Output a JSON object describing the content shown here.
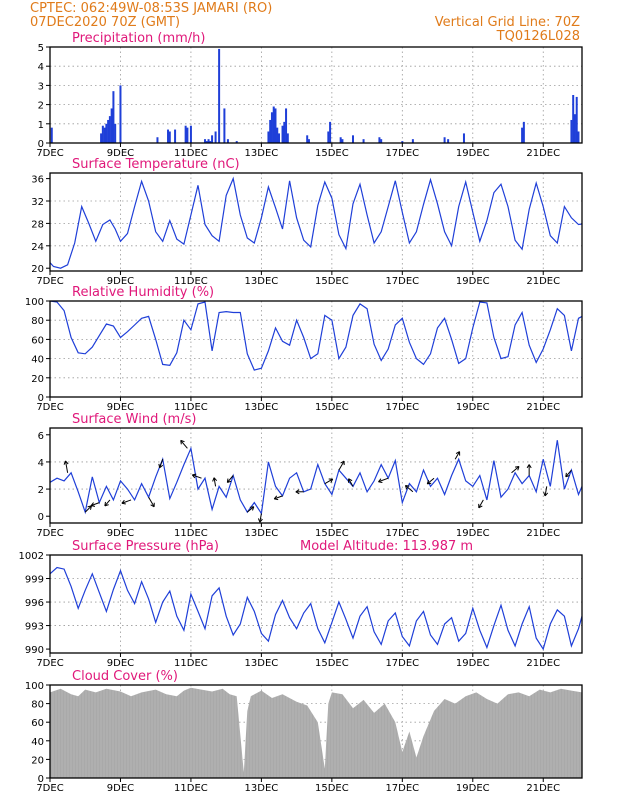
{
  "header": {
    "line1": "CPTEC:    062:49W-08:53S   JAMARI (RO)",
    "line2": "07DEC2020 70Z (GMT)",
    "grid_note": "Vertical Grid Line: 70Z",
    "code": "TQ0126L028"
  },
  "colors": {
    "header": "#e07b1a",
    "panel_title": "#e0187a",
    "series": "#1f3fd8",
    "cloud": "#a9a9a9"
  },
  "x_axis": {
    "ticks": [
      "7DEC",
      "9DEC",
      "11DEC",
      "13DEC",
      "15DEC",
      "17DEC",
      "19DEC",
      "21DEC"
    ],
    "tick_days": [
      7,
      9,
      11,
      13,
      15,
      17,
      19,
      21
    ],
    "range_days": [
      7,
      22.1
    ]
  },
  "chart_data": [
    {
      "id": "precip",
      "type": "bar",
      "title": "Precipitation (mm/h)",
      "ylim": [
        0,
        5
      ],
      "yticks": [
        "0",
        "1",
        "2",
        "3",
        "4",
        "5"
      ],
      "ytick_values": [
        0,
        1,
        2,
        3,
        4,
        5
      ],
      "x": [
        7.05,
        8.45,
        8.5,
        8.55,
        8.6,
        8.65,
        8.7,
        8.75,
        8.8,
        9.0,
        8.85,
        10.05,
        10.35,
        10.4,
        10.55,
        10.85,
        10.9,
        11.0,
        11.4,
        11.45,
        11.5,
        11.55,
        11.6,
        11.7,
        11.8,
        11.95,
        12.05,
        12.3,
        13.2,
        13.25,
        13.3,
        13.35,
        13.4,
        13.45,
        13.5,
        13.6,
        13.65,
        13.7,
        13.75,
        14.3,
        14.35,
        14.9,
        14.95,
        15.25,
        15.3,
        15.6,
        15.9,
        16.35,
        16.4,
        17.0,
        17.3,
        18.2,
        18.3,
        18.75,
        20.4,
        20.45,
        21.8,
        21.85,
        21.9,
        21.95,
        22.0
      ],
      "y": [
        0.8,
        0.5,
        0.9,
        0.8,
        1.0,
        1.2,
        1.4,
        1.8,
        2.7,
        3.0,
        1.0,
        0.3,
        0.7,
        0.6,
        0.7,
        0.9,
        0.8,
        0.9,
        0.2,
        0.1,
        0.2,
        0.1,
        0.4,
        0.6,
        4.9,
        1.8,
        0.2,
        0.1,
        0.6,
        1.2,
        1.6,
        1.9,
        1.8,
        0.8,
        0.5,
        0.9,
        1.1,
        1.8,
        0.5,
        0.4,
        0.2,
        0.6,
        1.1,
        0.3,
        0.2,
        0.4,
        0.2,
        0.3,
        0.2,
        0.1,
        0.2,
        0.3,
        0.2,
        0.5,
        0.8,
        1.1,
        1.2,
        2.5,
        1.5,
        2.4,
        0.6
      ]
    },
    {
      "id": "temp",
      "type": "line",
      "title": "Surface Temperature (nC)",
      "ylim": [
        19.5,
        37
      ],
      "yticks": [
        "20",
        "24",
        "28",
        "32",
        "36"
      ],
      "ytick_values": [
        20,
        24,
        28,
        32,
        36
      ],
      "x": [
        7.0,
        7.1,
        7.3,
        7.5,
        7.7,
        7.9,
        8.1,
        8.3,
        8.5,
        8.7,
        8.85,
        9.0,
        9.2,
        9.4,
        9.6,
        9.8,
        10.0,
        10.2,
        10.4,
        10.6,
        10.8,
        11.0,
        11.2,
        11.4,
        11.6,
        11.8,
        12.0,
        12.2,
        12.4,
        12.6,
        12.8,
        13.0,
        13.2,
        13.4,
        13.6,
        13.8,
        14.0,
        14.2,
        14.4,
        14.6,
        14.8,
        15.0,
        15.2,
        15.4,
        15.6,
        15.8,
        16.0,
        16.2,
        16.4,
        16.6,
        16.8,
        17.0,
        17.2,
        17.4,
        17.6,
        17.8,
        18.0,
        18.2,
        18.4,
        18.6,
        18.8,
        19.0,
        19.2,
        19.4,
        19.6,
        19.8,
        20.0,
        20.2,
        20.4,
        20.6,
        20.8,
        21.0,
        21.2,
        21.4,
        21.6,
        21.8,
        22.0,
        22.1
      ],
      "y": [
        21.0,
        20.3,
        20.0,
        20.6,
        24.5,
        31.0,
        28.0,
        24.8,
        27.8,
        28.6,
        27.0,
        24.8,
        26.2,
        31.0,
        35.5,
        32.0,
        26.5,
        24.8,
        28.5,
        25.2,
        24.3,
        29.5,
        34.8,
        27.8,
        25.8,
        24.8,
        33.0,
        36.0,
        29.5,
        25.4,
        24.5,
        29.0,
        34.5,
        30.8,
        27.0,
        35.6,
        29.0,
        25.0,
        23.8,
        31.2,
        35.4,
        32.5,
        26.0,
        23.5,
        31.5,
        35.0,
        29.5,
        24.5,
        26.5,
        31.0,
        35.6,
        30.0,
        24.5,
        26.5,
        31.4,
        35.8,
        31.5,
        26.5,
        24.0,
        31.0,
        35.4,
        30.0,
        24.8,
        28.5,
        33.5,
        35.0,
        31.0,
        25.0,
        23.4,
        30.5,
        35.2,
        31.0,
        25.8,
        24.5,
        31.0,
        29.0,
        27.8,
        27.9
      ]
    },
    {
      "id": "rh",
      "type": "line",
      "title": "Relative Humidity (%)",
      "ylim": [
        0,
        100
      ],
      "yticks": [
        "0",
        "20",
        "40",
        "60",
        "80",
        "100"
      ],
      "ytick_values": [
        0,
        20,
        40,
        60,
        80,
        100
      ],
      "x": [
        7.0,
        7.2,
        7.4,
        7.6,
        7.8,
        8.0,
        8.2,
        8.4,
        8.6,
        8.8,
        9.0,
        9.2,
        9.4,
        9.6,
        9.8,
        10.0,
        10.2,
        10.4,
        10.6,
        10.8,
        11.0,
        11.2,
        11.4,
        11.6,
        11.8,
        12.0,
        12.2,
        12.4,
        12.6,
        12.8,
        13.0,
        13.2,
        13.4,
        13.6,
        13.8,
        14.0,
        14.2,
        14.4,
        14.6,
        14.8,
        15.0,
        15.2,
        15.4,
        15.6,
        15.8,
        16.0,
        16.2,
        16.4,
        16.6,
        16.8,
        17.0,
        17.2,
        17.4,
        17.6,
        17.8,
        18.0,
        18.2,
        18.4,
        18.6,
        18.8,
        19.0,
        19.2,
        19.4,
        19.6,
        19.8,
        20.0,
        20.2,
        20.4,
        20.6,
        20.8,
        21.0,
        21.2,
        21.4,
        21.6,
        21.8,
        22.0,
        22.1
      ],
      "y": [
        100,
        99,
        90,
        62,
        46,
        45,
        52,
        64,
        76,
        74,
        62,
        68,
        75,
        82,
        84,
        60,
        34,
        33,
        46,
        80,
        70,
        97,
        99,
        48,
        88,
        89,
        88,
        88,
        45,
        28,
        30,
        48,
        72,
        58,
        54,
        80,
        62,
        40,
        45,
        85,
        80,
        40,
        52,
        85,
        97,
        92,
        55,
        38,
        50,
        75,
        82,
        57,
        40,
        34,
        45,
        72,
        82,
        60,
        35,
        40,
        72,
        99,
        98,
        62,
        40,
        42,
        75,
        88,
        54,
        36,
        50,
        70,
        92,
        85,
        48,
        82,
        84
      ]
    },
    {
      "id": "wind",
      "type": "line",
      "title": "Surface Wind (m/s)",
      "ylim": [
        -0.5,
        6.5
      ],
      "yticks": [
        "0",
        "2",
        "4",
        "6"
      ],
      "ytick_values": [
        0,
        2,
        4,
        6
      ],
      "x": [
        7.0,
        7.2,
        7.4,
        7.6,
        7.8,
        8.0,
        8.2,
        8.4,
        8.6,
        8.8,
        9.0,
        9.2,
        9.4,
        9.6,
        9.8,
        10.0,
        10.2,
        10.4,
        10.6,
        10.8,
        11.0,
        11.2,
        11.4,
        11.6,
        11.8,
        12.0,
        12.2,
        12.4,
        12.6,
        12.8,
        13.0,
        13.2,
        13.4,
        13.6,
        13.8,
        14.0,
        14.2,
        14.4,
        14.6,
        14.8,
        15.0,
        15.2,
        15.4,
        15.6,
        15.8,
        16.0,
        16.2,
        16.4,
        16.6,
        16.8,
        17.0,
        17.2,
        17.4,
        17.6,
        17.8,
        18.0,
        18.2,
        18.4,
        18.6,
        18.8,
        19.0,
        19.2,
        19.4,
        19.6,
        19.8,
        20.0,
        20.2,
        20.4,
        20.6,
        20.8,
        21.0,
        21.2,
        21.4,
        21.6,
        21.8,
        22.0,
        22.1
      ],
      "y": [
        2.5,
        2.8,
        2.6,
        3.2,
        1.8,
        0.3,
        2.9,
        1.0,
        2.2,
        1.2,
        2.6,
        2.0,
        1.2,
        2.4,
        1.4,
        2.9,
        4.2,
        1.3,
        2.5,
        3.8,
        5.0,
        2.0,
        2.8,
        0.5,
        2.2,
        1.4,
        3.0,
        1.2,
        0.3,
        1.0,
        0.2,
        4.0,
        2.2,
        1.5,
        2.8,
        3.2,
        1.8,
        2.0,
        3.8,
        2.4,
        1.6,
        3.4,
        2.8,
        2.2,
        3.2,
        1.8,
        2.6,
        3.8,
        2.8,
        4.1,
        1.0,
        2.4,
        1.8,
        3.4,
        2.2,
        2.8,
        1.6,
        3.0,
        4.2,
        2.6,
        2.2,
        3.0,
        1.2,
        4.1,
        1.4,
        2.0,
        3.2,
        2.4,
        3.0,
        1.8,
        4.2,
        2.2,
        5.6,
        2.0,
        3.4,
        1.6,
        2.2
      ]
    },
    {
      "id": "pres",
      "type": "line",
      "title": "Surface Pressure (hPa)",
      "ylim": [
        989.5,
        1002
      ],
      "yticks": [
        "990",
        "993",
        "996",
        "999",
        "1002"
      ],
      "ytick_values": [
        990,
        993,
        996,
        999,
        1002
      ],
      "x": [
        7.0,
        7.2,
        7.4,
        7.6,
        7.8,
        8.0,
        8.2,
        8.4,
        8.6,
        8.8,
        9.0,
        9.2,
        9.4,
        9.6,
        9.8,
        10.0,
        10.2,
        10.4,
        10.6,
        10.8,
        11.0,
        11.2,
        11.4,
        11.6,
        11.8,
        12.0,
        12.2,
        12.4,
        12.6,
        12.8,
        13.0,
        13.2,
        13.4,
        13.6,
        13.8,
        14.0,
        14.2,
        14.4,
        14.6,
        14.8,
        15.0,
        15.2,
        15.4,
        15.6,
        15.8,
        16.0,
        16.2,
        16.4,
        16.6,
        16.8,
        17.0,
        17.2,
        17.4,
        17.6,
        17.8,
        18.0,
        18.2,
        18.4,
        18.6,
        18.8,
        19.0,
        19.2,
        19.4,
        19.6,
        19.8,
        20.0,
        20.2,
        20.4,
        20.6,
        20.8,
        21.0,
        21.2,
        21.4,
        21.6,
        21.8,
        22.0,
        22.1
      ],
      "y": [
        999.6,
        1000.4,
        1000.2,
        998.0,
        995.2,
        997.5,
        999.6,
        997.2,
        994.8,
        997.6,
        1000.0,
        997.5,
        995.8,
        998.6,
        996.4,
        993.4,
        996.0,
        997.4,
        994.2,
        992.4,
        997.0,
        994.8,
        992.6,
        996.8,
        997.8,
        994.2,
        991.8,
        993.2,
        996.6,
        994.8,
        992.0,
        991.0,
        994.4,
        996.2,
        994.0,
        992.6,
        994.6,
        995.8,
        992.6,
        990.8,
        993.4,
        996.0,
        993.8,
        991.4,
        994.2,
        995.4,
        992.2,
        990.6,
        993.6,
        994.6,
        991.6,
        990.4,
        993.6,
        994.8,
        991.8,
        990.6,
        993.2,
        994.0,
        991.0,
        992.0,
        995.2,
        992.4,
        990.2,
        993.0,
        995.6,
        992.4,
        990.4,
        993.2,
        995.4,
        991.4,
        990.0,
        993.2,
        995.0,
        994.2,
        990.4,
        992.6,
        994.2
      ]
    },
    {
      "id": "cloud",
      "type": "area",
      "title": "Cloud Cover (%)",
      "ylim": [
        0,
        100
      ],
      "yticks": [
        "0",
        "20",
        "40",
        "60",
        "80",
        "100"
      ],
      "ytick_values": [
        0,
        20,
        40,
        60,
        80,
        100
      ],
      "x": [
        7.0,
        7.3,
        7.6,
        7.8,
        8.0,
        8.3,
        8.6,
        9.0,
        9.3,
        9.6,
        10.0,
        10.3,
        10.6,
        10.8,
        11.0,
        11.3,
        11.6,
        11.9,
        12.1,
        12.3,
        12.5,
        12.6,
        12.7,
        13.0,
        13.3,
        13.6,
        14.0,
        14.3,
        14.6,
        14.8,
        14.9,
        15.0,
        15.3,
        15.6,
        15.9,
        16.2,
        16.5,
        16.8,
        17.0,
        17.2,
        17.4,
        17.6,
        17.9,
        18.2,
        18.5,
        18.8,
        19.1,
        19.4,
        19.7,
        20.0,
        20.3,
        20.6,
        20.9,
        21.2,
        21.5,
        21.8,
        22.1
      ],
      "y": [
        92,
        96,
        90,
        88,
        95,
        92,
        96,
        93,
        88,
        92,
        95,
        90,
        88,
        94,
        97,
        95,
        93,
        96,
        90,
        88,
        6,
        72,
        88,
        94,
        86,
        90,
        82,
        78,
        60,
        10,
        80,
        92,
        90,
        75,
        84,
        70,
        80,
        60,
        28,
        50,
        22,
        45,
        72,
        85,
        80,
        88,
        92,
        85,
        80,
        90,
        92,
        88,
        95,
        92,
        96,
        94,
        92
      ]
    }
  ],
  "wind_barbs": [
    {
      "x": 7.5,
      "speed": 2.5,
      "dir": 100
    },
    {
      "x": 8.0,
      "speed": 1.5,
      "dir": 45
    },
    {
      "x": 8.4,
      "speed": 1.5,
      "dir": 200
    },
    {
      "x": 8.7,
      "speed": 1.2,
      "dir": 230
    },
    {
      "x": 9.3,
      "speed": 1.8,
      "dir": 200
    },
    {
      "x": 9.8,
      "speed": 2.2,
      "dir": 300
    },
    {
      "x": 10.2,
      "speed": 1.6,
      "dir": 250
    },
    {
      "x": 10.9,
      "speed": 2.0,
      "dir": 130
    },
    {
      "x": 11.3,
      "speed": 1.8,
      "dir": 160
    },
    {
      "x": 11.7,
      "speed": 1.5,
      "dir": 100
    },
    {
      "x": 12.2,
      "speed": 1.6,
      "dir": 230
    },
    {
      "x": 12.6,
      "speed": 1.4,
      "dir": 40
    },
    {
      "x": 13.0,
      "speed": 1.5,
      "dir": 260
    },
    {
      "x": 13.6,
      "speed": 1.5,
      "dir": 200
    },
    {
      "x": 14.2,
      "speed": 1.2,
      "dir": 180
    },
    {
      "x": 14.8,
      "speed": 1.6,
      "dir": 30
    },
    {
      "x": 15.2,
      "speed": 2.0,
      "dir": 60
    },
    {
      "x": 15.6,
      "speed": 1.5,
      "dir": 120
    },
    {
      "x": 16.6,
      "speed": 2.0,
      "dir": 200
    },
    {
      "x": 17.3,
      "speed": 1.8,
      "dir": 140
    },
    {
      "x": 17.9,
      "speed": 1.5,
      "dir": 220
    },
    {
      "x": 18.5,
      "speed": 1.5,
      "dir": 60
    },
    {
      "x": 19.3,
      "speed": 1.6,
      "dir": 240
    },
    {
      "x": 20.1,
      "speed": 1.8,
      "dir": 40
    },
    {
      "x": 20.6,
      "speed": 2.2,
      "dir": 90
    },
    {
      "x": 21.1,
      "speed": 1.8,
      "dir": 260
    },
    {
      "x": 21.8,
      "speed": 1.5,
      "dir": 230
    }
  ],
  "model_altitude": "Model Altitude: 113.987 m"
}
